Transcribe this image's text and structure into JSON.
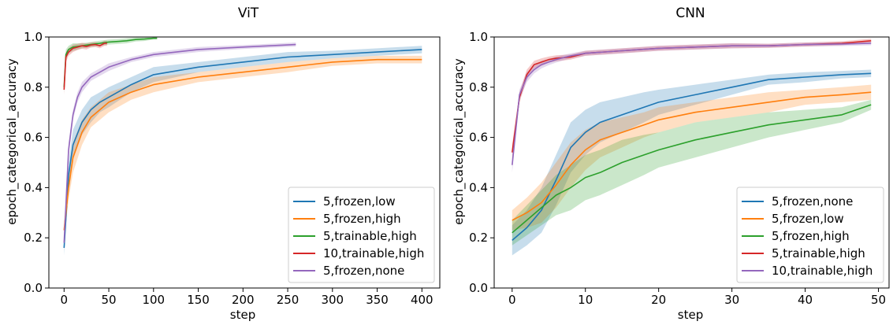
{
  "chart_data": [
    {
      "type": "line",
      "title": "ViT",
      "xlabel": "step",
      "ylabel": "epoch_categorical_accuracy",
      "xlim": [
        -17,
        420
      ],
      "ylim": [
        0.0,
        1.0
      ],
      "xticks": [
        0,
        50,
        100,
        150,
        200,
        250,
        300,
        350,
        400
      ],
      "yticks": [
        0.0,
        0.2,
        0.4,
        0.6,
        0.8,
        1.0
      ],
      "xtick_labels": [
        "0",
        "50",
        "100",
        "150",
        "200",
        "250",
        "300",
        "350",
        "400"
      ],
      "ytick_labels": [
        "0.0",
        "0.2",
        "0.4",
        "0.6",
        "0.8",
        "1.0"
      ],
      "grid": false,
      "legend_position": "bottom-right",
      "series": [
        {
          "name": "5,frozen,low",
          "color": "#1f77b4",
          "x": [
            0,
            5,
            10,
            20,
            30,
            40,
            50,
            75,
            100,
            150,
            200,
            250,
            300,
            350,
            400
          ],
          "y": [
            0.16,
            0.45,
            0.57,
            0.66,
            0.71,
            0.74,
            0.76,
            0.81,
            0.85,
            0.88,
            0.9,
            0.92,
            0.93,
            0.94,
            0.95
          ],
          "band": [
            0.03,
            0.05,
            0.06,
            0.05,
            0.05,
            0.04,
            0.04,
            0.03,
            0.03,
            0.02,
            0.02,
            0.02,
            0.015,
            0.015,
            0.015
          ]
        },
        {
          "name": "5,frozen,high",
          "color": "#ff7f0e",
          "x": [
            0,
            5,
            10,
            20,
            30,
            40,
            50,
            75,
            100,
            150,
            200,
            250,
            300,
            350,
            400
          ],
          "y": [
            0.23,
            0.4,
            0.52,
            0.62,
            0.68,
            0.71,
            0.74,
            0.78,
            0.81,
            0.84,
            0.86,
            0.88,
            0.9,
            0.91,
            0.91
          ],
          "band": [
            0.04,
            0.05,
            0.06,
            0.05,
            0.04,
            0.04,
            0.04,
            0.03,
            0.03,
            0.02,
            0.02,
            0.02,
            0.015,
            0.015,
            0.015
          ]
        },
        {
          "name": "5,trainable,high",
          "color": "#2ca02c",
          "x": [
            0,
            2,
            5,
            10,
            20,
            30,
            40,
            50,
            60,
            70,
            80,
            90,
            100,
            104
          ],
          "y": [
            0.8,
            0.93,
            0.95,
            0.96,
            0.965,
            0.97,
            0.975,
            0.98,
            0.982,
            0.985,
            0.99,
            0.992,
            0.995,
            0.995
          ],
          "band": [
            0.02,
            0.02,
            0.015,
            0.015,
            0.01,
            0.01,
            0.01,
            0.01,
            0.01,
            0.01,
            0.008,
            0.008,
            0.005,
            0.005
          ]
        },
        {
          "name": "10,trainable,high",
          "color": "#d62728",
          "x": [
            0,
            2,
            5,
            10,
            15,
            20,
            25,
            30,
            35,
            40,
            45,
            48
          ],
          "y": [
            0.79,
            0.92,
            0.94,
            0.955,
            0.96,
            0.965,
            0.962,
            0.968,
            0.97,
            0.965,
            0.975,
            0.975
          ],
          "band": [
            0.02,
            0.02,
            0.015,
            0.015,
            0.012,
            0.012,
            0.012,
            0.01,
            0.01,
            0.01,
            0.01,
            0.01
          ]
        },
        {
          "name": "5,frozen,none",
          "color": "#9467bd",
          "x": [
            0,
            5,
            10,
            15,
            20,
            30,
            40,
            50,
            75,
            100,
            150,
            200,
            259
          ],
          "y": [
            0.18,
            0.55,
            0.69,
            0.76,
            0.8,
            0.84,
            0.86,
            0.88,
            0.91,
            0.93,
            0.95,
            0.96,
            0.97
          ],
          "band": [
            0.02,
            0.03,
            0.02,
            0.02,
            0.02,
            0.015,
            0.015,
            0.015,
            0.01,
            0.01,
            0.01,
            0.008,
            0.008
          ]
        }
      ]
    },
    {
      "type": "line",
      "title": "CNN",
      "xlabel": "step",
      "ylabel": "epoch_categorical_accuracy",
      "xlim": [
        -2.45,
        51.45
      ],
      "ylim": [
        0.0,
        1.0
      ],
      "xticks": [
        0,
        10,
        20,
        30,
        40,
        50
      ],
      "yticks": [
        0.0,
        0.2,
        0.4,
        0.6,
        0.8,
        1.0
      ],
      "xtick_labels": [
        "0",
        "10",
        "20",
        "30",
        "40",
        "50"
      ],
      "ytick_labels": [
        "0.0",
        "0.2",
        "0.4",
        "0.6",
        "0.8",
        "1.0"
      ],
      "grid": false,
      "legend_position": "bottom-right",
      "series": [
        {
          "name": "5,frozen,none",
          "color": "#1f77b4",
          "x": [
            0,
            2,
            4,
            6,
            8,
            10,
            12,
            15,
            18,
            20,
            25,
            30,
            35,
            40,
            45,
            49
          ],
          "y": [
            0.19,
            0.24,
            0.31,
            0.43,
            0.56,
            0.62,
            0.66,
            0.69,
            0.72,
            0.74,
            0.77,
            0.8,
            0.83,
            0.84,
            0.85,
            0.855
          ],
          "band": [
            0.06,
            0.07,
            0.09,
            0.1,
            0.1,
            0.09,
            0.08,
            0.07,
            0.06,
            0.05,
            0.04,
            0.03,
            0.02,
            0.02,
            0.015,
            0.015
          ]
        },
        {
          "name": "5,frozen,low",
          "color": "#ff7f0e",
          "x": [
            0,
            2,
            4,
            6,
            8,
            10,
            12,
            15,
            18,
            20,
            25,
            30,
            35,
            40,
            45,
            49
          ],
          "y": [
            0.27,
            0.3,
            0.34,
            0.41,
            0.49,
            0.55,
            0.59,
            0.62,
            0.65,
            0.67,
            0.7,
            0.72,
            0.74,
            0.76,
            0.77,
            0.78
          ],
          "band": [
            0.04,
            0.06,
            0.08,
            0.09,
            0.09,
            0.08,
            0.07,
            0.06,
            0.05,
            0.05,
            0.04,
            0.04,
            0.04,
            0.03,
            0.03,
            0.03
          ]
        },
        {
          "name": "5,frozen,high",
          "color": "#2ca02c",
          "x": [
            0,
            2,
            4,
            6,
            8,
            10,
            12,
            15,
            18,
            20,
            25,
            30,
            35,
            40,
            45,
            49
          ],
          "y": [
            0.22,
            0.27,
            0.32,
            0.37,
            0.4,
            0.44,
            0.46,
            0.5,
            0.53,
            0.55,
            0.59,
            0.62,
            0.65,
            0.67,
            0.69,
            0.73
          ],
          "band": [
            0.05,
            0.06,
            0.07,
            0.08,
            0.09,
            0.09,
            0.09,
            0.09,
            0.08,
            0.07,
            0.07,
            0.06,
            0.05,
            0.04,
            0.03,
            0.02
          ]
        },
        {
          "name": "5,trainable,high",
          "color": "#d62728",
          "x": [
            0,
            1,
            2,
            3,
            4,
            5,
            6,
            8,
            10,
            15,
            20,
            25,
            30,
            35,
            40,
            45,
            49
          ],
          "y": [
            0.54,
            0.76,
            0.85,
            0.89,
            0.9,
            0.91,
            0.915,
            0.92,
            0.935,
            0.945,
            0.955,
            0.96,
            0.965,
            0.965,
            0.97,
            0.975,
            0.985
          ],
          "band": [
            0.03,
            0.02,
            0.02,
            0.015,
            0.015,
            0.012,
            0.012,
            0.01,
            0.01,
            0.01,
            0.01,
            0.01,
            0.01,
            0.008,
            0.008,
            0.008,
            0.008
          ]
        },
        {
          "name": "10,trainable,high",
          "color": "#9467bd",
          "x": [
            0,
            1,
            2,
            3,
            4,
            5,
            6,
            8,
            10,
            15,
            20,
            25,
            30,
            35,
            40,
            45,
            49
          ],
          "y": [
            0.49,
            0.77,
            0.84,
            0.87,
            0.89,
            0.9,
            0.91,
            0.925,
            0.935,
            0.945,
            0.955,
            0.96,
            0.965,
            0.965,
            0.97,
            0.972,
            0.975
          ],
          "band": [
            0.03,
            0.02,
            0.02,
            0.015,
            0.015,
            0.012,
            0.012,
            0.01,
            0.01,
            0.01,
            0.01,
            0.01,
            0.01,
            0.008,
            0.008,
            0.008,
            0.008
          ]
        }
      ]
    }
  ]
}
